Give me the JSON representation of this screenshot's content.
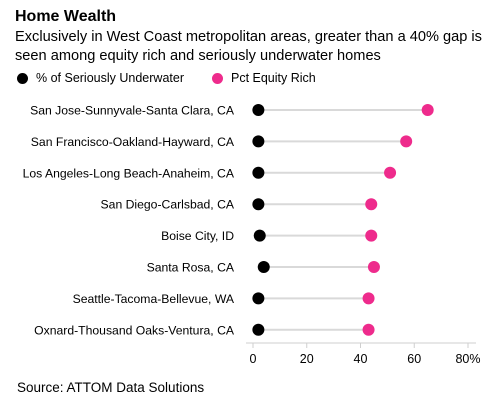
{
  "title": "Home Wealth",
  "subtitle": "Exclusively in West Coast metropolitan areas, greater than a 40% gap is seen among equity rich and seriously underwater homes",
  "legend": [
    {
      "label": "% of Seriously Underwater",
      "color": "#000000"
    },
    {
      "label": "Pct Equity Rich",
      "color": "#ee2b8c"
    }
  ],
  "source": "Source: ATTOM Data Solutions",
  "colors": {
    "underwater": "#000000",
    "equity": "#ee2b8c",
    "stem": "#d9d9d9",
    "axis": "#cfcfcf"
  },
  "chart_data": {
    "type": "dot-plot",
    "categories": [
      "San Jose-Sunnyvale-Santa Clara, CA",
      "San Francisco-Oakland-Hayward, CA",
      "Los Angeles-Long Beach-Anaheim, CA",
      "San Diego-Carlsbad, CA",
      "Boise City, ID",
      "Santa Rosa, CA",
      "Seattle-Tacoma-Bellevue, WA",
      "Oxnard-Thousand Oaks-Ventura, CA"
    ],
    "series": [
      {
        "name": "% of Seriously Underwater",
        "values": [
          2,
          2,
          2,
          2,
          2.5,
          4,
          2,
          2
        ]
      },
      {
        "name": "Pct Equity Rich",
        "values": [
          65,
          57,
          51,
          44,
          44,
          45,
          43,
          43
        ]
      }
    ],
    "x_ticks": [
      "0",
      "20",
      "40",
      "60",
      "80%"
    ],
    "x_tick_values": [
      0,
      20,
      40,
      60,
      80
    ],
    "xlim": [
      0,
      80
    ],
    "grid": false,
    "legend_position": "top-left"
  }
}
